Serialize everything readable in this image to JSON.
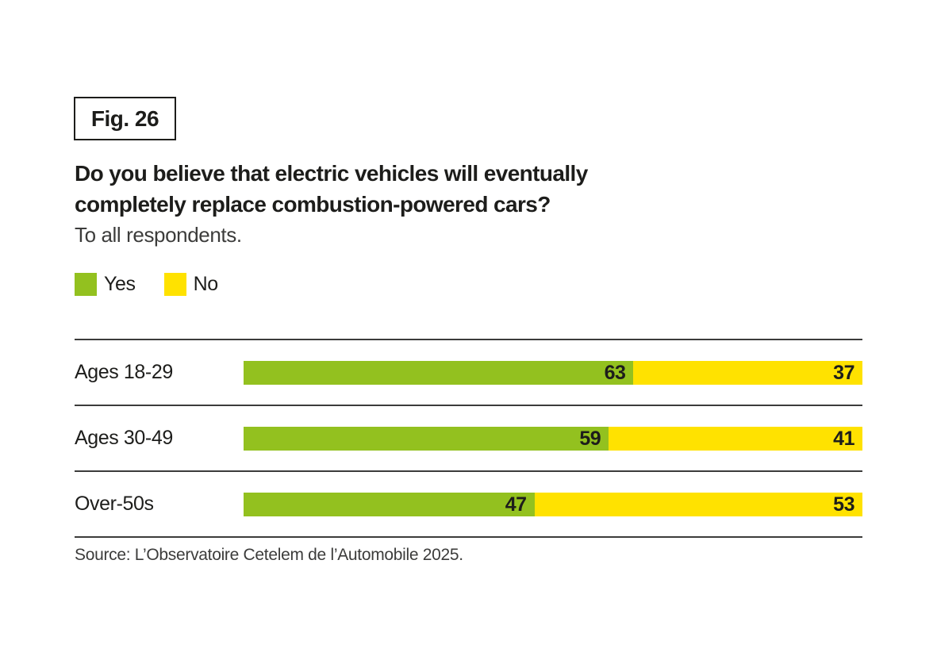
{
  "figure": {
    "label": "Fig. 26"
  },
  "chart_data": {
    "type": "bar",
    "orientation": "horizontal-stacked",
    "title": "Do you believe that electric vehicles will eventually completely replace combustion-powered cars?",
    "title_lines": [
      "Do you believe that electric vehicles will eventually",
      "completely replace combustion-powered cars?"
    ],
    "subtitle": "To all respondents.",
    "categories": [
      "Ages 18-29",
      "Ages 30-49",
      "Over-50s"
    ],
    "series": [
      {
        "name": "Yes",
        "color": "#93c11f",
        "values": [
          63,
          59,
          47
        ]
      },
      {
        "name": "No",
        "color": "#ffe200",
        "values": [
          37,
          41,
          53
        ]
      }
    ],
    "value_unit": "%",
    "xlim": [
      0,
      100
    ],
    "legend_position": "top-left",
    "grid": false
  },
  "source": "Source: L’Observatoire Cetelem de l’Automobile 2025."
}
